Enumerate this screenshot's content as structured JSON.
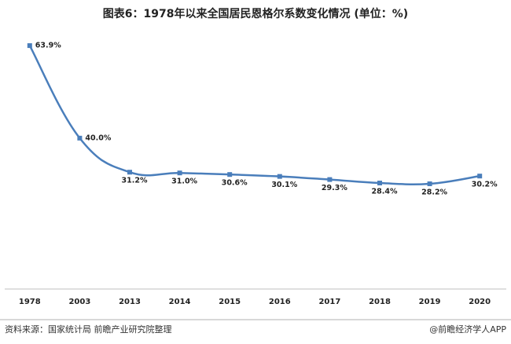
{
  "chart_data": {
    "type": "line",
    "title": "图表6：1978年以来全国居民恩格尔系数变化情况 (单位：%)",
    "categories": [
      "1978",
      "2003",
      "2013",
      "2014",
      "2015",
      "2016",
      "2017",
      "2018",
      "2019",
      "2020"
    ],
    "values": [
      63.9,
      40.0,
      31.2,
      31.0,
      30.6,
      30.1,
      29.3,
      28.4,
      28.2,
      30.2
    ],
    "value_labels": [
      "63.9%",
      "40.0%",
      "31.2%",
      "31.0%",
      "30.6%",
      "30.1%",
      "29.3%",
      "28.4%",
      "28.2%",
      "30.2%"
    ],
    "color": "#4a7ebb",
    "ylim": [
      0,
      70
    ],
    "source": "资料来源：国家统计局 前瞻产业研究院整理",
    "credit": "@前瞻经济学人APP"
  }
}
